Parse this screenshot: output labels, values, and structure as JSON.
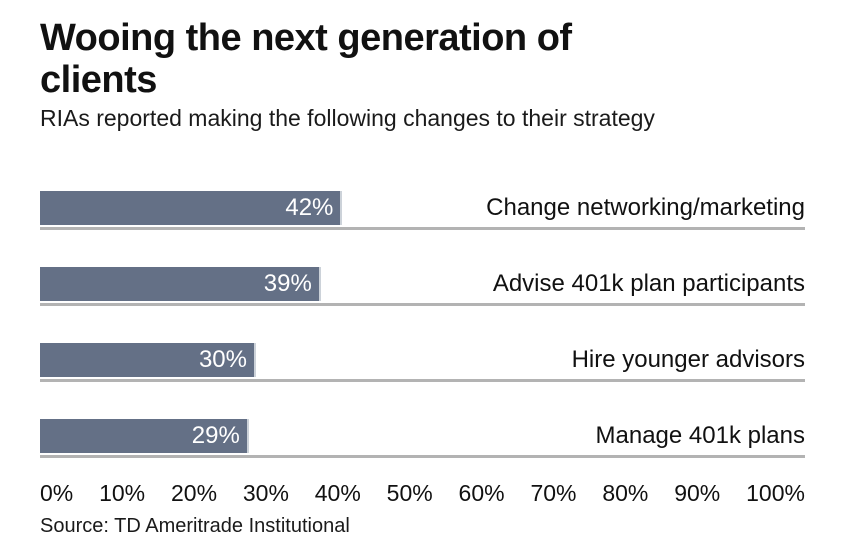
{
  "header": {
    "title": "Wooing the next generation of clients",
    "subtitle": "RIAs reported making the following changes to their strategy"
  },
  "source": "Source: TD Ameritrade Institutional",
  "chart_data": {
    "type": "bar",
    "orientation": "horizontal",
    "title": "Wooing the next generation of clients",
    "subtitle": "RIAs reported making the following changes to their strategy",
    "categories": [
      "Change networking/marketing",
      "Advise 401k plan participants",
      "Hire younger advisors",
      "Manage 401k plans"
    ],
    "values": [
      42,
      39,
      30,
      29
    ],
    "value_labels": [
      "42%",
      "39%",
      "30%",
      "29%"
    ],
    "x_ticks": [
      "0%",
      "10%",
      "20%",
      "30%",
      "40%",
      "50%",
      "60%",
      "70%",
      "80%",
      "90%",
      "100%"
    ],
    "xlim": [
      0,
      100
    ],
    "grid": "row underlines only",
    "legend": "none",
    "value_label_position": "inside bar, right end, white",
    "category_label_position": "right edge of chart, aligned with bar",
    "bar_color": "#647086",
    "gridline_color": "#b3b3b3",
    "value_text_color": "#ffffff",
    "text_color": "#111111",
    "source": "Source: TD Ameritrade Institutional"
  }
}
